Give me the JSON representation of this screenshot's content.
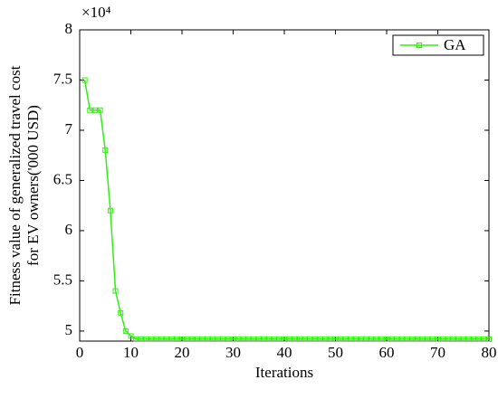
{
  "chart_data": {
    "type": "line",
    "xlabel": "Iterations",
    "ylabel": [
      "Fitness value of generalized travel cost",
      "for EV owners('000 USD)"
    ],
    "y_multiplier": "×10⁴",
    "x": [
      1,
      2,
      3,
      4,
      5,
      6,
      7,
      8,
      9,
      10,
      11,
      12,
      13,
      14,
      15,
      16,
      17,
      18,
      19,
      20,
      21,
      22,
      23,
      24,
      25,
      26,
      27,
      28,
      29,
      30,
      31,
      32,
      33,
      34,
      35,
      36,
      37,
      38,
      39,
      40,
      41,
      42,
      43,
      44,
      45,
      46,
      47,
      48,
      49,
      50,
      51,
      52,
      53,
      54,
      55,
      56,
      57,
      58,
      59,
      60,
      61,
      62,
      63,
      64,
      65,
      66,
      67,
      68,
      69,
      70,
      71,
      72,
      73,
      74,
      75,
      76,
      77,
      78,
      79,
      80
    ],
    "series": [
      {
        "name": "GA",
        "color": "#33ee11",
        "values": [
          7.5,
          7.2,
          7.2,
          7.2,
          6.8,
          6.2,
          5.4,
          5.18,
          5.0,
          4.95,
          4.92,
          4.92,
          4.92,
          4.92,
          4.92,
          4.92,
          4.92,
          4.92,
          4.92,
          4.92,
          4.92,
          4.92,
          4.92,
          4.92,
          4.92,
          4.92,
          4.92,
          4.92,
          4.92,
          4.92,
          4.92,
          4.92,
          4.92,
          4.92,
          4.92,
          4.92,
          4.92,
          4.92,
          4.92,
          4.92,
          4.92,
          4.92,
          4.92,
          4.92,
          4.92,
          4.92,
          4.92,
          4.92,
          4.92,
          4.92,
          4.92,
          4.92,
          4.92,
          4.92,
          4.92,
          4.92,
          4.92,
          4.92,
          4.92,
          4.92,
          4.92,
          4.92,
          4.92,
          4.92,
          4.92,
          4.92,
          4.92,
          4.92,
          4.92,
          4.92,
          4.92,
          4.92,
          4.92,
          4.92,
          4.92,
          4.92,
          4.92,
          4.92,
          4.92,
          4.92
        ]
      }
    ],
    "xlim": [
      0,
      80
    ],
    "xticks": [
      0,
      10,
      20,
      30,
      40,
      50,
      60,
      70,
      80
    ],
    "ylim": [
      4.9,
      8
    ],
    "yticks": [
      5,
      5.5,
      6,
      6.5,
      7,
      7.5,
      8
    ],
    "legend": "upper right",
    "grid": false
  }
}
